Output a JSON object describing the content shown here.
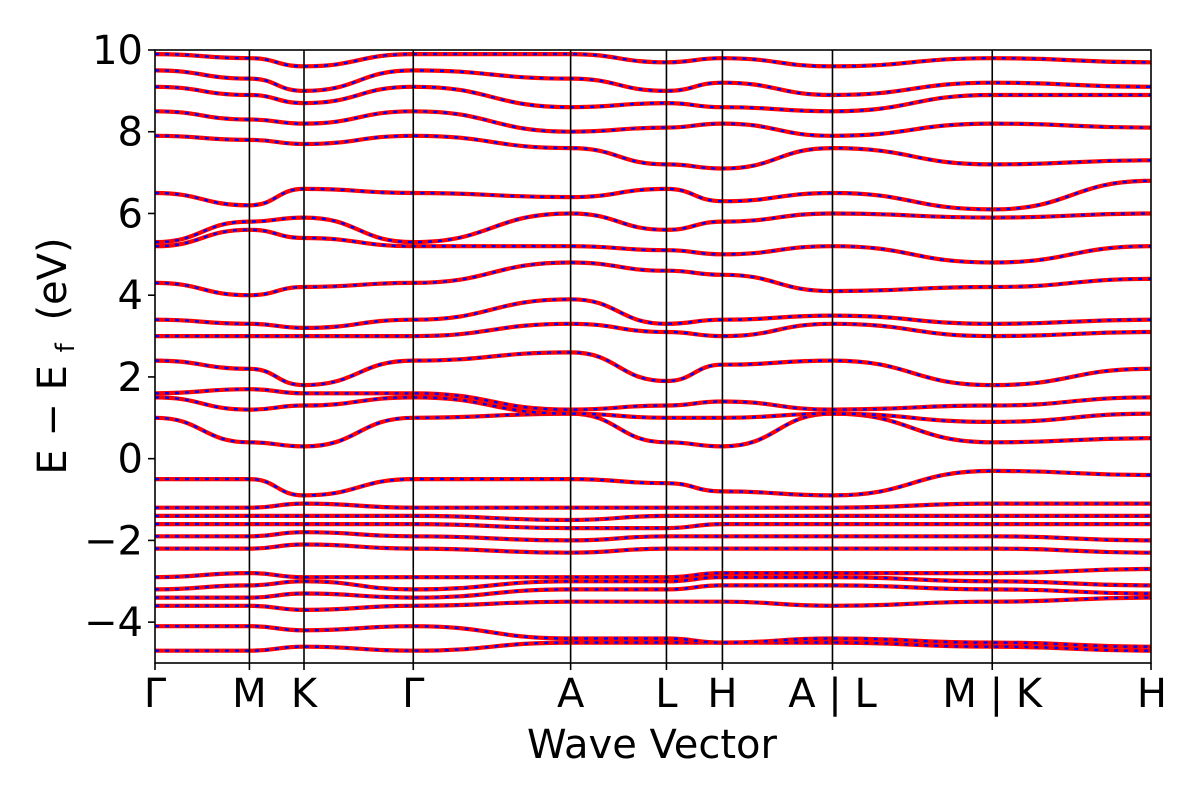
{
  "chart_data": {
    "type": "line",
    "xlabel": "Wave Vector",
    "ylabel_main": "E − E",
    "ylabel_sub": "f",
    "ylabel_unit": "(eV)",
    "ylim": [
      -5,
      10
    ],
    "yticks": [
      {
        "value": 10,
        "label": "10"
      },
      {
        "value": 8,
        "label": "8"
      },
      {
        "value": 6,
        "label": "6"
      },
      {
        "value": 4,
        "label": "4"
      },
      {
        "value": 2,
        "label": "2"
      },
      {
        "value": 0,
        "label": "0"
      },
      {
        "value": -2,
        "label": "−2"
      },
      {
        "value": -4,
        "label": "−4"
      }
    ],
    "kpath_fractions": [
      0,
      0.0948,
      0.1496,
      0.2593,
      0.4173,
      0.5135,
      0.5697,
      0.6802,
      0.8406,
      1
    ],
    "xtick_labels": [
      "Γ",
      "M",
      "K",
      "Γ",
      "A",
      "L",
      "H",
      "A | L",
      "M | K",
      "H"
    ],
    "band_colors": {
      "solid": "#ff0000",
      "dashed": "#0000ff"
    },
    "grid": false,
    "legend": "none",
    "bands_at_high_symmetry_points_eV": [
      [
        -4.7,
        -4.7,
        -4.6,
        -4.7,
        -4.5,
        -4.5,
        -4.5,
        -4.5,
        -4.6,
        -4.7
      ],
      [
        -4.1,
        -4.1,
        -4.2,
        -4.1,
        -4.4,
        -4.4,
        -4.5,
        -4.4,
        -4.5,
        -4.6
      ],
      [
        -3.6,
        -3.6,
        -3.7,
        -3.6,
        -3.5,
        -3.5,
        -3.5,
        -3.6,
        -3.5,
        -3.4
      ],
      [
        -3.4,
        -3.4,
        -3.3,
        -3.4,
        -3.2,
        -3.2,
        -3.1,
        -3.1,
        -3.2,
        -3.3
      ],
      [
        -3.2,
        -3.1,
        -3.0,
        -3.2,
        -3.0,
        -3.0,
        -2.9,
        -2.9,
        -3.0,
        -3.1
      ],
      [
        -2.9,
        -2.8,
        -2.9,
        -2.9,
        -2.9,
        -2.9,
        -2.8,
        -2.8,
        -2.8,
        -2.7
      ],
      [
        -2.2,
        -2.2,
        -2.1,
        -2.2,
        -2.3,
        -2.2,
        -2.2,
        -2.2,
        -2.2,
        -2.3
      ],
      [
        -1.9,
        -1.9,
        -1.8,
        -1.9,
        -2.0,
        -1.9,
        -1.9,
        -1.9,
        -1.9,
        -2.0
      ],
      [
        -1.6,
        -1.6,
        -1.6,
        -1.6,
        -1.7,
        -1.7,
        -1.6,
        -1.6,
        -1.6,
        -1.6
      ],
      [
        -1.4,
        -1.4,
        -1.4,
        -1.4,
        -1.5,
        -1.4,
        -1.4,
        -1.4,
        -1.4,
        -1.4
      ],
      [
        -1.2,
        -1.2,
        -1.1,
        -1.2,
        -1.2,
        -1.2,
        -1.2,
        -1.2,
        -1.1,
        -1.1
      ],
      [
        -0.5,
        -0.5,
        -0.9,
        -0.5,
        -0.5,
        -0.6,
        -0.8,
        -0.9,
        -0.3,
        -0.4
      ],
      [
        1.0,
        0.4,
        0.3,
        1.0,
        1.1,
        0.4,
        0.3,
        1.1,
        0.4,
        0.5
      ],
      [
        1.5,
        1.2,
        1.3,
        1.5,
        1.1,
        1.0,
        1.0,
        1.1,
        0.9,
        1.1
      ],
      [
        1.6,
        1.7,
        1.6,
        1.6,
        1.2,
        1.3,
        1.4,
        1.2,
        1.3,
        1.5
      ],
      [
        2.4,
        2.2,
        1.8,
        2.4,
        2.6,
        1.9,
        2.3,
        2.4,
        1.8,
        2.2
      ],
      [
        3.0,
        3.0,
        3.0,
        3.0,
        3.3,
        3.1,
        3.0,
        3.3,
        3.0,
        3.1
      ],
      [
        3.4,
        3.3,
        3.2,
        3.4,
        3.9,
        3.3,
        3.4,
        3.5,
        3.3,
        3.4
      ],
      [
        4.3,
        4.0,
        4.2,
        4.3,
        4.8,
        4.6,
        4.5,
        4.1,
        4.2,
        4.4
      ],
      [
        5.2,
        5.6,
        5.4,
        5.2,
        5.2,
        5.1,
        5.0,
        5.2,
        4.8,
        5.2
      ],
      [
        5.3,
        5.8,
        5.9,
        5.3,
        6.0,
        5.6,
        5.8,
        6.0,
        5.9,
        6.0
      ],
      [
        6.5,
        6.2,
        6.6,
        6.5,
        6.4,
        6.6,
        6.3,
        6.5,
        6.1,
        6.8
      ],
      [
        7.9,
        7.8,
        7.7,
        7.9,
        7.6,
        7.2,
        7.1,
        7.6,
        7.2,
        7.3
      ],
      [
        8.5,
        8.3,
        8.2,
        8.5,
        8.0,
        8.1,
        8.2,
        7.9,
        8.2,
        8.1
      ],
      [
        9.1,
        8.9,
        8.7,
        9.1,
        8.6,
        8.7,
        8.6,
        8.5,
        8.9,
        8.9
      ],
      [
        9.5,
        9.3,
        9.0,
        9.5,
        9.3,
        9.0,
        9.2,
        8.9,
        9.2,
        9.1
      ],
      [
        9.9,
        9.8,
        9.6,
        9.9,
        9.9,
        9.7,
        9.8,
        9.6,
        9.8,
        9.7
      ]
    ]
  }
}
